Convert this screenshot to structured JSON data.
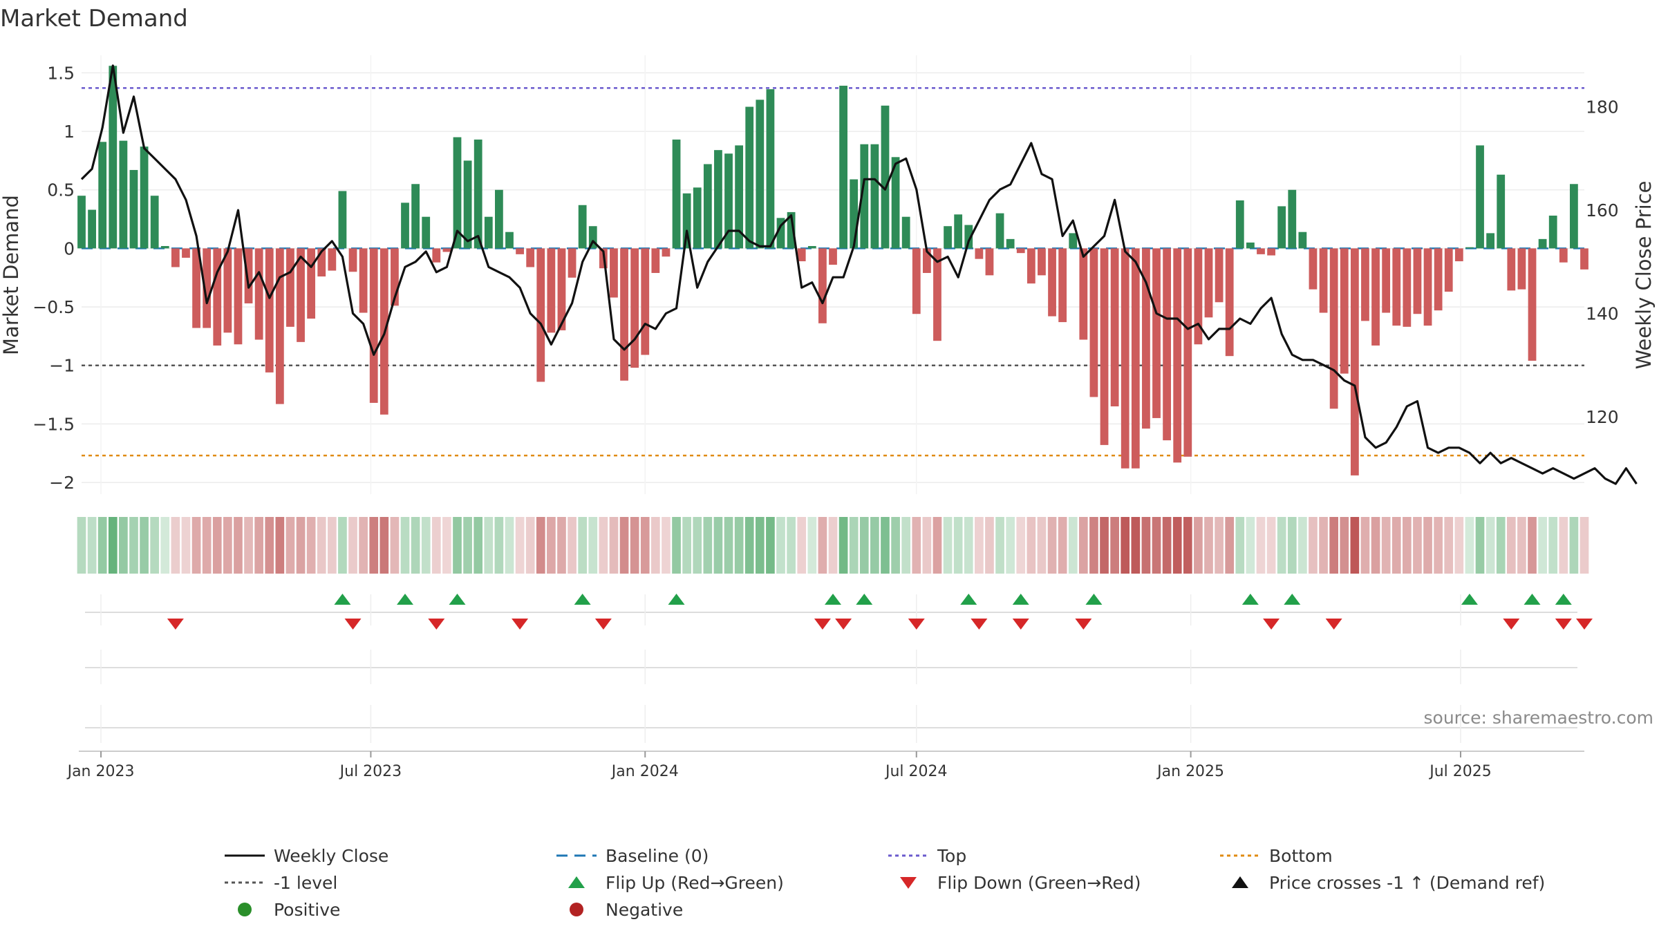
{
  "chart_data": {
    "type": "bar",
    "title": "Market Demand",
    "ylabel": "Market Demand",
    "ylabel_right": "Weekly Close Price",
    "ylim": [
      -2.1,
      1.65
    ],
    "ylim_right": [
      105,
      190
    ],
    "yticks": [
      1.5,
      1,
      0.5,
      0,
      -0.5,
      -1,
      -1.5,
      -2
    ],
    "ytick_labels": [
      "1.5",
      "1",
      "0.5",
      "0",
      "−0.5",
      "−1",
      "−1.5",
      "−2"
    ],
    "yticks_right": [
      180,
      160,
      140,
      120
    ],
    "ytick_labels_right": [
      "180",
      "160",
      "140",
      "120"
    ],
    "x_range": [
      "2022-12-19",
      "2025-09-22"
    ],
    "x_ticks": [
      {
        "date": "2023-01-01",
        "label": "Jan 2023"
      },
      {
        "date": "2023-07-01",
        "label": "Jul 2023"
      },
      {
        "date": "2024-01-01",
        "label": "Jan 2024"
      },
      {
        "date": "2024-07-01",
        "label": "Jul 2024"
      },
      {
        "date": "2025-01-01",
        "label": "Jan 2025"
      },
      {
        "date": "2025-07-01",
        "label": "Jul 2025"
      }
    ],
    "start_date": "2022-12-19",
    "interval_days": 7,
    "demand": [
      0.45,
      0.33,
      0.91,
      1.56,
      0.92,
      0.67,
      0.87,
      0.45,
      0.02,
      -0.16,
      -0.08,
      -0.68,
      -0.68,
      -0.83,
      -0.72,
      -0.82,
      -0.47,
      -0.78,
      -1.06,
      -1.33,
      -0.67,
      -0.8,
      -0.6,
      -0.24,
      -0.19,
      0.49,
      -0.2,
      -0.55,
      -1.32,
      -1.42,
      -0.49,
      0.39,
      0.55,
      0.27,
      -0.12,
      -0.03,
      0.95,
      0.75,
      0.93,
      0.27,
      0.5,
      0.14,
      -0.05,
      -0.16,
      -1.14,
      -0.72,
      -0.7,
      -0.25,
      0.37,
      0.19,
      -0.17,
      -0.42,
      -1.13,
      -1.02,
      -0.91,
      -0.21,
      -0.07,
      0.93,
      0.47,
      0.52,
      0.72,
      0.84,
      0.81,
      0.88,
      1.21,
      1.27,
      1.36,
      0.26,
      0.31,
      -0.11,
      0.02,
      -0.64,
      -0.14,
      1.39,
      0.59,
      0.89,
      0.89,
      1.22,
      0.78,
      0.27,
      -0.56,
      -0.21,
      -0.79,
      0.19,
      0.29,
      0.2,
      -0.09,
      -0.23,
      0.3,
      0.08,
      -0.04,
      -0.3,
      -0.23,
      -0.58,
      -0.63,
      0.13,
      -0.78,
      -1.27,
      -1.68,
      -1.35,
      -1.88,
      -1.88,
      -1.54,
      -1.45,
      -1.64,
      -1.83,
      -1.78,
      -0.82,
      -0.59,
      -0.46,
      -0.92,
      0.41,
      0.05,
      -0.05,
      -0.06,
      0.36,
      0.5,
      0.14,
      -0.35,
      -0.55,
      -1.37,
      -1.07,
      -1.94,
      -0.62,
      -0.83,
      -0.55,
      -0.66,
      -0.67,
      -0.56,
      -0.66,
      -0.53,
      -0.37,
      -0.11,
      0.01,
      0.88,
      0.13,
      0.63,
      -0.36,
      -0.35,
      -0.96,
      0.08,
      0.28,
      -0.12,
      0.55,
      -0.18
    ],
    "close": [
      166,
      168,
      176,
      188,
      175,
      182,
      172,
      170,
      168,
      166,
      162,
      155,
      142,
      148,
      152,
      160,
      145,
      148,
      143,
      147,
      148,
      151,
      149,
      152,
      154,
      151,
      140,
      138,
      132,
      136,
      143,
      149,
      150,
      152,
      148,
      149,
      156,
      154,
      155,
      149,
      148,
      147,
      145,
      140,
      138,
      134,
      138,
      142,
      150,
      154,
      152,
      135,
      133,
      135,
      138,
      137,
      140,
      141,
      156,
      145,
      150,
      153,
      156,
      156,
      154,
      153,
      153,
      157,
      159,
      145,
      146,
      142,
      147,
      147,
      153,
      166,
      166,
      164,
      169,
      170,
      164,
      152,
      150,
      151,
      147,
      154,
      158,
      162,
      164,
      165,
      169,
      173,
      167,
      166,
      155,
      158,
      151,
      153,
      155,
      162,
      152,
      150,
      146,
      140,
      139,
      139,
      137,
      138,
      135,
      137,
      137,
      139,
      138,
      141,
      143,
      136,
      132,
      131,
      131,
      130,
      129,
      127,
      126,
      116,
      114,
      115,
      118,
      122,
      123,
      114,
      113,
      114,
      114,
      113,
      111,
      113,
      111,
      112,
      111,
      110,
      109,
      110,
      109,
      108,
      109,
      110,
      108,
      107,
      110,
      107
    ],
    "baseline": 0,
    "top_level": 1.37,
    "bottom_level": -1.77,
    "minus_one_level": -1,
    "flip_up_dates": [
      "2023-06-12",
      "2023-07-24",
      "2023-08-28",
      "2023-11-20",
      "2024-01-22",
      "2024-05-06",
      "2024-05-27",
      "2024-08-05",
      "2024-09-09",
      "2024-10-28",
      "2025-02-10",
      "2025-03-10",
      "2025-07-07",
      "2025-08-18",
      "2025-09-08"
    ],
    "flip_down_dates": [
      "2023-02-20",
      "2023-06-19",
      "2023-08-14",
      "2023-10-09",
      "2023-12-04",
      "2024-04-29",
      "2024-05-13",
      "2024-07-01",
      "2024-08-12",
      "2024-09-09",
      "2024-10-21",
      "2025-02-24",
      "2025-04-07",
      "2025-08-04",
      "2025-09-08",
      "2025-09-22"
    ],
    "legend": [
      {
        "label": "Weekly Close",
        "kind": "line",
        "color": "#111111",
        "dash": ""
      },
      {
        "label": "Baseline (0)",
        "kind": "line",
        "color": "#1f77b4",
        "dash": "16,10"
      },
      {
        "label": "Top",
        "kind": "line",
        "color": "#6a5acd",
        "dash": "5,5"
      },
      {
        "label": "Bottom",
        "kind": "line",
        "color": "#e08b12",
        "dash": "5,5"
      },
      {
        "label": "-1 level",
        "kind": "line",
        "color": "#555555",
        "dash": "5,5"
      },
      {
        "label": "Flip Up (Red→Green)",
        "kind": "tri-up",
        "color": "#22a04a",
        "dash": ""
      },
      {
        "label": "Flip Down (Green→Red)",
        "kind": "tri-down",
        "color": "#d62728",
        "dash": ""
      },
      {
        "label": "Price crosses -1 ↑ (Demand ref)",
        "kind": "tri-up",
        "color": "#111111",
        "dash": ""
      },
      {
        "label": "Positive",
        "kind": "dot",
        "color": "#2a8f2a",
        "dash": ""
      },
      {
        "label": "Negative",
        "kind": "dot",
        "color": "#b22222",
        "dash": ""
      }
    ],
    "source": "source: sharemaestro.com",
    "colors": {
      "positive_bar": "#2e8b57",
      "negative_bar": "#cd5c5c",
      "close_line": "#111111",
      "heat_positive": "#3f9f5a",
      "heat_negative": "#b84a4a"
    }
  }
}
